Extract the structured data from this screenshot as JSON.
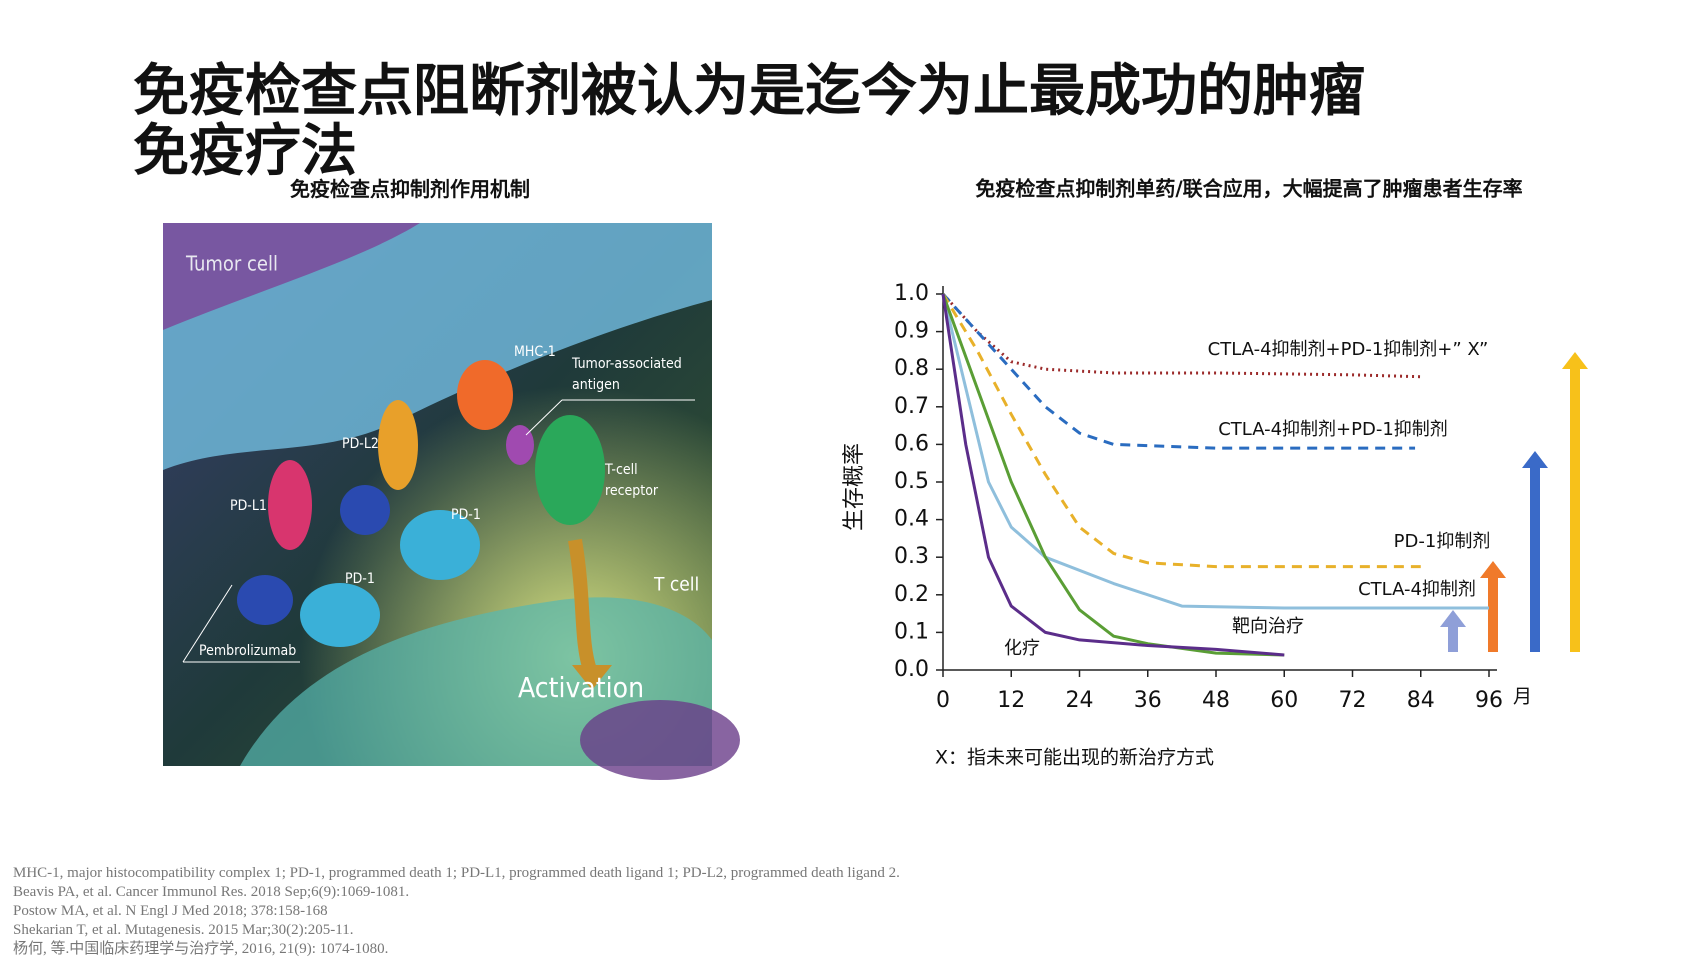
{
  "header": {
    "title": "免疫检查点阻断剂被认为是迄今为止最成功的肿瘤免疫疗法"
  },
  "left_panel": {
    "caption": "免疫检查点抑制剂作用机制",
    "illustration_labels": {
      "tumor_cell": "Tumor cell",
      "mhc": "MHC-1",
      "antigen": [
        "Tumor-associated",
        "antigen"
      ],
      "pdl2": "PD-L2",
      "tcr": [
        "T-cell",
        "receptor"
      ],
      "pdl1": "PD-L1",
      "pd1_a": "PD-1",
      "pd1_b": "PD-1",
      "t_cell": "T cell",
      "drug": "Pembrolizumab",
      "activation": "Activation"
    }
  },
  "chart_data": {
    "type": "line",
    "title": "免疫检查点抑制剂单药/联合应用，大幅提高了肿瘤患者生存率",
    "y_label": "生存概率",
    "x_label": "月",
    "note": "X：指未来可能出现的新治疗方式",
    "xlim": [
      0,
      96
    ],
    "ylim": [
      0,
      1
    ],
    "xticks": [
      0,
      12,
      24,
      36,
      48,
      60,
      72,
      84,
      96
    ],
    "yticks": [
      {
        "value": 0,
        "label": "0.0"
      },
      0.1,
      0.2,
      0.3,
      0.4,
      0.5,
      0.6,
      0.7,
      0.8,
      0.9,
      {
        "value": 1,
        "label": "1.0"
      }
    ],
    "series": [
      {
        "name": "CTLA-4抑制剂+PD-1抑制剂+” X”",
        "color": "#9b2a2a",
        "style": "dotted",
        "x": [
          0,
          6,
          12,
          18,
          30,
          48,
          72,
          84
        ],
        "values": [
          1,
          0.9,
          0.82,
          0.8,
          0.79,
          0.79,
          0.785,
          0.78
        ]
      },
      {
        "name": "CTLA-4抑制剂+PD-1抑制剂",
        "color": "#2a6cc0",
        "style": "dashed",
        "x": [
          0,
          6,
          12,
          18,
          24,
          30,
          48,
          72,
          83
        ],
        "values": [
          1,
          0.9,
          0.8,
          0.7,
          0.63,
          0.6,
          0.59,
          0.59,
          0.59
        ]
      },
      {
        "name": "PD-1抑制剂",
        "color": "#e8b12a",
        "style": "dashed",
        "x": [
          0,
          6,
          12,
          18,
          24,
          30,
          36,
          48,
          72,
          84
        ],
        "values": [
          1,
          0.85,
          0.68,
          0.52,
          0.38,
          0.31,
          0.285,
          0.275,
          0.275,
          0.275
        ]
      },
      {
        "name": "CTLA-4抑制剂",
        "color": "#8fbfdc",
        "style": "solid",
        "x": [
          0,
          4,
          8,
          12,
          18,
          30,
          42,
          60,
          96
        ],
        "values": [
          1,
          0.75,
          0.5,
          0.38,
          0.3,
          0.23,
          0.17,
          0.165,
          0.165
        ]
      },
      {
        "name": "靶向治疗",
        "color": "#5a9e35",
        "style": "solid",
        "x": [
          0,
          6,
          12,
          18,
          24,
          30,
          36,
          48,
          60
        ],
        "values": [
          1,
          0.75,
          0.5,
          0.3,
          0.16,
          0.09,
          0.07,
          0.045,
          0.04
        ]
      },
      {
        "name": "化疗",
        "color": "#5b2d8a",
        "style": "solid",
        "x": [
          0,
          4,
          8,
          12,
          18,
          24,
          36,
          48,
          60
        ],
        "values": [
          1,
          0.6,
          0.3,
          0.17,
          0.1,
          0.08,
          0.065,
          0.055,
          0.04
        ]
      }
    ]
  },
  "footnotes": [
    "MHC-1, major histocompatibility complex 1; PD-1, programmed death 1; PD-L1, programmed death ligand 1; PD-L2, programmed death ligand 2.",
    "Beavis PA, et al. Cancer Immunol Res. 2018 Sep;6(9):1069-1081.",
    "Postow MA, et al. N Engl J Med 2018; 378:158-168",
    "Shekarian T, et al. Mutagenesis. 2015 Mar;30(2):205-11.",
    "杨何, 等.中国临床药理学与治疗学, 2016, 21(9): 1074-1080."
  ]
}
